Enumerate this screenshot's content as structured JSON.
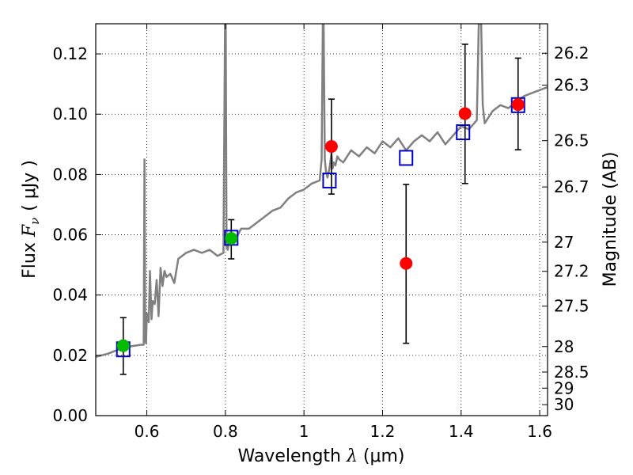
{
  "chart_data": {
    "type": "scatter",
    "title": "",
    "xlabel": "Wavelength  λ (μm)",
    "xlabel_parts": {
      "prefix": "Wavelength  ",
      "var": "λ",
      "unit": " (μm)"
    },
    "ylabel_parts": {
      "prefix": "Flux  ",
      "var": "F",
      "sub": "ν",
      "unit": "( μJy )"
    },
    "y2label": "Magnitude (AB)",
    "xlim": [
      0.47,
      1.62
    ],
    "ylim": [
      0.0,
      0.13
    ],
    "grid": true,
    "x_ticks": [
      {
        "value": 0.6,
        "label": "0.6"
      },
      {
        "value": 0.8,
        "label": "0.8"
      },
      {
        "value": 1.0,
        "label": "1"
      },
      {
        "value": 1.2,
        "label": "1.2"
      },
      {
        "value": 1.4,
        "label": "1.4"
      },
      {
        "value": 1.6,
        "label": "1.6"
      }
    ],
    "y_ticks": [
      {
        "value": 0.0,
        "label": "0.00"
      },
      {
        "value": 0.02,
        "label": "0.02"
      },
      {
        "value": 0.04,
        "label": "0.04"
      },
      {
        "value": 0.06,
        "label": "0.06"
      },
      {
        "value": 0.08,
        "label": "0.08"
      },
      {
        "value": 0.1,
        "label": "0.10"
      },
      {
        "value": 0.12,
        "label": "0.12"
      }
    ],
    "y2_ticks": [
      {
        "mag": 26.2,
        "label": "26.2"
      },
      {
        "mag": 26.3,
        "label": "26.3"
      },
      {
        "mag": 26.5,
        "label": "26.5"
      },
      {
        "mag": 26.7,
        "label": "26.7"
      },
      {
        "mag": 27.0,
        "label": "27"
      },
      {
        "mag": 27.2,
        "label": "27.2"
      },
      {
        "mag": 27.5,
        "label": "27.5"
      },
      {
        "mag": 28.0,
        "label": "28"
      },
      {
        "mag": 28.5,
        "label": "28.5"
      },
      {
        "mag": 29.0,
        "label": "29"
      },
      {
        "mag": 30.0,
        "label": "30"
      }
    ],
    "colors": {
      "spectrum": "#808080",
      "model_box": "#0000cc",
      "red_point": "#ff0000",
      "green_point": "#00bb00",
      "errorbar": "#000000",
      "grid": "#000000"
    },
    "series": [
      {
        "name": "model spectrum",
        "kind": "line",
        "x": [
          0.47,
          0.5,
          0.53,
          0.56,
          0.585,
          0.592,
          0.594,
          0.596,
          0.598,
          0.6,
          0.605,
          0.608,
          0.612,
          0.615,
          0.62,
          0.625,
          0.63,
          0.635,
          0.64,
          0.645,
          0.65,
          0.66,
          0.67,
          0.68,
          0.7,
          0.72,
          0.74,
          0.76,
          0.78,
          0.795,
          0.799,
          0.801,
          0.803,
          0.806,
          0.81,
          0.82,
          0.84,
          0.86,
          0.88,
          0.9,
          0.92,
          0.94,
          0.96,
          0.98,
          1.0,
          1.02,
          1.04,
          1.045,
          1.048,
          1.05,
          1.053,
          1.056,
          1.06,
          1.065,
          1.07,
          1.073,
          1.076,
          1.08,
          1.085,
          1.09,
          1.1,
          1.12,
          1.14,
          1.16,
          1.18,
          1.2,
          1.22,
          1.24,
          1.26,
          1.28,
          1.3,
          1.32,
          1.34,
          1.36,
          1.38,
          1.4,
          1.42,
          1.44,
          1.445,
          1.448,
          1.451,
          1.455,
          1.46,
          1.48,
          1.5,
          1.52,
          1.54,
          1.56,
          1.58,
          1.6,
          1.62
        ],
        "y": [
          0.0195,
          0.0205,
          0.022,
          0.023,
          0.0235,
          0.0235,
          0.085,
          0.025,
          0.024,
          0.034,
          0.031,
          0.048,
          0.032,
          0.038,
          0.037,
          0.045,
          0.033,
          0.049,
          0.043,
          0.048,
          0.046,
          0.047,
          0.044,
          0.052,
          0.054,
          0.055,
          0.054,
          0.055,
          0.053,
          0.054,
          0.13,
          0.13,
          0.056,
          0.055,
          0.058,
          0.057,
          0.062,
          0.062,
          0.064,
          0.066,
          0.068,
          0.069,
          0.072,
          0.074,
          0.075,
          0.077,
          0.078,
          0.085,
          0.13,
          0.13,
          0.085,
          0.081,
          0.079,
          0.082,
          0.087,
          0.082,
          0.084,
          0.083,
          0.086,
          0.085,
          0.084,
          0.088,
          0.086,
          0.089,
          0.087,
          0.091,
          0.089,
          0.092,
          0.088,
          0.091,
          0.093,
          0.091,
          0.094,
          0.09,
          0.093,
          0.096,
          0.095,
          0.098,
          0.13,
          0.13,
          0.13,
          0.103,
          0.097,
          0.101,
          0.103,
          0.102,
          0.104,
          0.106,
          0.107,
          0.108,
          0.109
        ]
      },
      {
        "name": "model synthetic photometry",
        "kind": "open-square",
        "x": [
          0.54,
          0.815,
          1.065,
          1.26,
          1.405,
          1.545
        ],
        "y": [
          0.022,
          0.059,
          0.078,
          0.0855,
          0.094,
          0.103
        ]
      },
      {
        "name": "observed photometry (green)",
        "kind": "filled-circle",
        "x": [
          0.54,
          0.815
        ],
        "y": [
          0.0232,
          0.0588
        ],
        "err_low": [
          0.0095,
          0.0068
        ],
        "err_high": [
          0.0093,
          0.0062
        ]
      },
      {
        "name": "observed photometry (red)",
        "kind": "filled-circle",
        "x": [
          1.07,
          1.26,
          1.41,
          1.545
        ],
        "y": [
          0.0893,
          0.0505,
          0.1002,
          0.1032
        ],
        "err_low": [
          0.0158,
          0.0265,
          0.0232,
          0.015
        ],
        "err_high": [
          0.0157,
          0.0262,
          0.023,
          0.0154
        ]
      }
    ]
  }
}
